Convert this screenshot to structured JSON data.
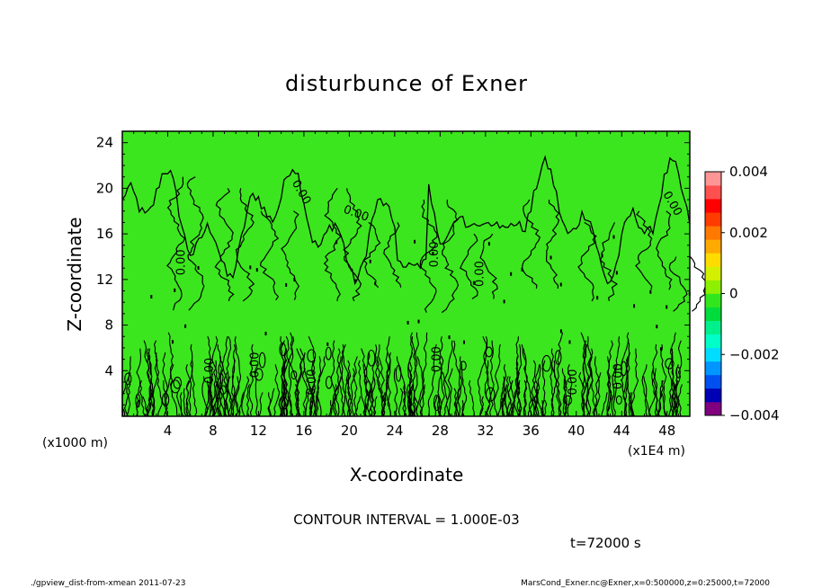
{
  "chart_data": {
    "type": "heatmap",
    "title": "disturbunce of Exner",
    "xlabel": "X-coordinate",
    "ylabel": "Z-coordinate",
    "x_unit": "(x1E4 m)",
    "y_unit": "(x1000 m)",
    "xlim": [
      0,
      50
    ],
    "ylim": [
      0,
      25
    ],
    "x_ticks": [
      4,
      8,
      12,
      16,
      20,
      24,
      28,
      32,
      36,
      40,
      44,
      48
    ],
    "y_ticks": [
      4,
      8,
      12,
      16,
      20,
      24
    ],
    "contour_interval_text": "CONTOUR INTERVAL = 1.000E-03",
    "contour_label": "0.00",
    "colorbar": {
      "ticks": [
        "0.004",
        "0.002",
        "0",
        "−0.002",
        "−0.004"
      ],
      "tick_values": [
        0.004,
        0.002,
        0,
        -0.002,
        -0.004
      ],
      "range": [
        -0.004,
        0.004
      ],
      "colors": [
        "#800080",
        "#0000b4",
        "#0050f0",
        "#0096ff",
        "#00dcff",
        "#00ffc8",
        "#00f08c",
        "#00dc3c",
        "#32e61e",
        "#8cf000",
        "#d2f000",
        "#ffdc00",
        "#ffaa00",
        "#ff7800",
        "#ff3c00",
        "#ff0000",
        "#ff5050",
        "#ff9696"
      ]
    },
    "background_value_color": "#3ce61e",
    "time_text": "t=72000 s"
  },
  "footer": {
    "left": "./gpview_dist-from-xmean   2011-07-23",
    "right": "MarsCond_Exner.nc@Exner,x=0:500000,z=0:25000,t=72000"
  }
}
